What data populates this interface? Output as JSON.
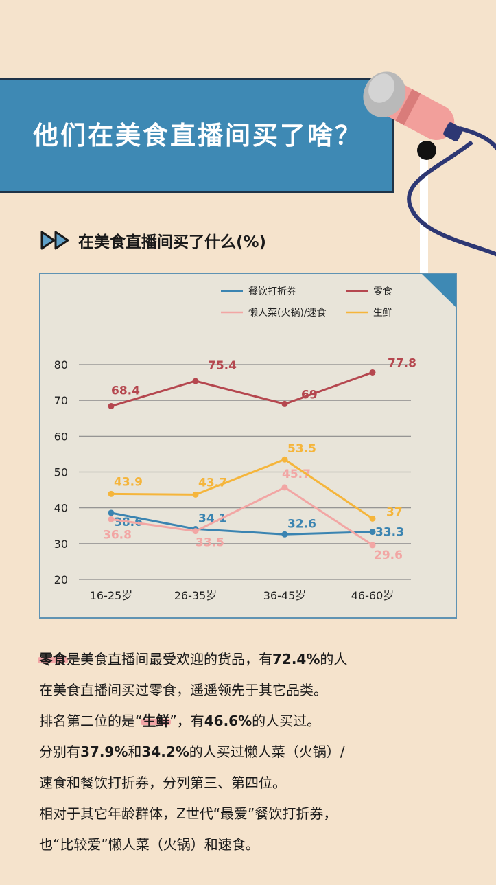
{
  "banner": {
    "title": "他们在美食直播间买了啥？"
  },
  "section": {
    "icon": "double-play-arrow-icon",
    "title": "在美食直播间买了什么(%)"
  },
  "chart_data": {
    "type": "line",
    "categories": [
      "16-25岁",
      "26-35岁",
      "36-45岁",
      "46-60岁"
    ],
    "ylim": [
      20,
      80
    ],
    "yticks": [
      20,
      30,
      40,
      50,
      60,
      70,
      80
    ],
    "grid": true,
    "legend_position": "top-right",
    "series": [
      {
        "name": "餐饮打折券",
        "color": "#3b84b1",
        "values": [
          38.6,
          34.1,
          32.6,
          33.3
        ],
        "labels": [
          "38.6",
          "34.1",
          "32.6",
          "33.3"
        ]
      },
      {
        "name": "零食",
        "color": "#b5474f",
        "values": [
          68.4,
          75.4,
          69,
          77.8
        ],
        "labels": [
          "68.4",
          "75.4",
          "69",
          "77.8"
        ]
      },
      {
        "name": "懒人菜(火锅)/速食",
        "color": "#f2a6a4",
        "values": [
          36.8,
          33.5,
          45.7,
          29.6
        ],
        "labels": [
          "36.8",
          "33.5",
          "45.7",
          "29.6"
        ]
      },
      {
        "name": "生鲜",
        "color": "#f5b53b",
        "values": [
          43.9,
          43.7,
          53.5,
          37
        ],
        "labels": [
          "43.9",
          "43.7",
          "53.5",
          "37"
        ]
      }
    ]
  },
  "text": {
    "l1_hl": "零食",
    "l1_a": "是美食直播间最受欢迎的货品，有",
    "l1_b": "72.4%",
    "l1_c": "的人",
    "l2": "在美食直播间买过零食，遥遥领先于其它品类。",
    "l3_a": "排名第二位的是“",
    "l3_hl": "生鲜",
    "l3_b": "”，有",
    "l3_c": "46.6%",
    "l3_d": "的人买过。",
    "l4_a": "分别有",
    "l4_b": "37.9%",
    "l4_c": "和",
    "l4_d": "34.2%",
    "l4_e": "的人买过懒人菜（火锅）/",
    "l5": "速食和餐饮打折券，分列第三、第四位。",
    "l6": "相对于其它年龄群体，Z世代“最爱”餐饮打折券，",
    "l7": "也“比较爱”懒人菜（火锅）和速食。"
  }
}
